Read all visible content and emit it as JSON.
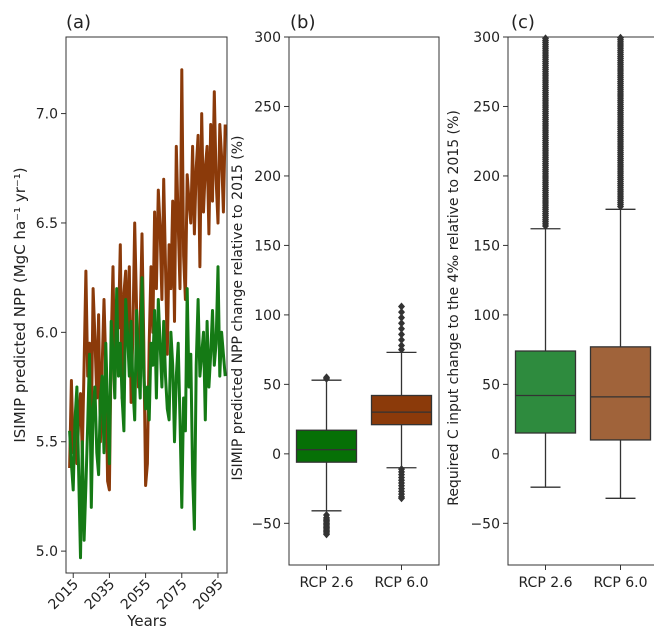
{
  "chart_data": [
    {
      "type": "line",
      "panel_label": "(a)",
      "title": "",
      "xlabel": "Years",
      "ylabel": "ISIMIP predicted NPP (MgC ha⁻¹ yr⁻¹)",
      "xlim": [
        2011,
        2100
      ],
      "ylim": [
        4.9,
        7.35
      ],
      "x_ticks": [
        2015,
        2035,
        2055,
        2075,
        2095
      ],
      "y_ticks": [
        5.0,
        5.5,
        6.0,
        6.5,
        7.0
      ],
      "y_tick_labels": [
        "5.0",
        "5.5",
        "6.0",
        "6.5",
        "7.0"
      ],
      "grid": false,
      "colors": {
        "rcp60": "#8B3A0A",
        "rcp26": "#157A15"
      },
      "x": [
        2013,
        2014,
        2015,
        2016,
        2017,
        2018,
        2019,
        2020,
        2021,
        2022,
        2023,
        2024,
        2025,
        2026,
        2027,
        2028,
        2029,
        2030,
        2031,
        2032,
        2033,
        2034,
        2035,
        2036,
        2037,
        2038,
        2039,
        2040,
        2041,
        2042,
        2043,
        2044,
        2045,
        2046,
        2047,
        2048,
        2049,
        2050,
        2051,
        2052,
        2053,
        2054,
        2055,
        2056,
        2057,
        2058,
        2059,
        2060,
        2061,
        2062,
        2063,
        2064,
        2065,
        2066,
        2067,
        2068,
        2069,
        2070,
        2071,
        2072,
        2073,
        2074,
        2075,
        2076,
        2077,
        2078,
        2079,
        2080,
        2081,
        2082,
        2083,
        2084,
        2085,
        2086,
        2087,
        2088,
        2089,
        2090,
        2091,
        2092,
        2093,
        2094,
        2095,
        2096,
        2097,
        2098,
        2099
      ],
      "series": [
        {
          "key": "rcp60",
          "values": [
            5.38,
            5.78,
            5.45,
            5.55,
            5.4,
            5.6,
            5.72,
            5.45,
            5.85,
            6.28,
            5.8,
            5.95,
            5.55,
            6.2,
            5.98,
            5.7,
            6.08,
            5.5,
            5.85,
            6.15,
            5.85,
            5.32,
            5.28,
            5.95,
            6.3,
            5.75,
            6.1,
            6.02,
            6.4,
            5.7,
            6.18,
            6.28,
            5.95,
            6.3,
            5.68,
            6.0,
            6.5,
            6.1,
            5.75,
            6.05,
            6.45,
            5.95,
            5.3,
            5.4,
            5.95,
            6.3,
            6.0,
            6.55,
            6.2,
            6.65,
            6.48,
            6.15,
            6.7,
            6.3,
            5.9,
            6.4,
            6.2,
            6.6,
            6.05,
            6.85,
            6.5,
            6.2,
            7.2,
            6.35,
            6.15,
            6.72,
            6.6,
            6.5,
            6.85,
            6.45,
            6.75,
            6.9,
            6.3,
            7.0,
            6.55,
            6.75,
            6.85,
            6.45,
            6.95,
            6.6,
            7.1,
            6.7,
            6.5,
            6.95,
            6.8,
            6.55,
            6.95
          ]
        },
        {
          "key": "rcp26",
          "values": [
            5.55,
            5.4,
            5.28,
            5.6,
            5.75,
            5.35,
            4.97,
            5.5,
            5.05,
            5.3,
            5.58,
            5.9,
            5.2,
            5.65,
            5.75,
            5.45,
            5.35,
            5.7,
            5.8,
            5.45,
            5.95,
            5.65,
            5.4,
            6.05,
            5.9,
            5.7,
            6.2,
            5.8,
            5.95,
            5.7,
            5.55,
            6.15,
            6.0,
            5.8,
            6.05,
            5.75,
            5.6,
            6.1,
            5.85,
            5.7,
            6.25,
            5.8,
            5.65,
            5.75,
            5.6,
            5.95,
            5.85,
            6.1,
            5.7,
            6.15,
            5.95,
            5.75,
            6.05,
            5.8,
            5.65,
            5.6,
            6.0,
            5.85,
            5.5,
            5.8,
            5.95,
            5.6,
            5.2,
            5.7,
            5.55,
            6.2,
            5.75,
            5.9,
            5.35,
            5.1,
            5.85,
            6.15,
            5.8,
            5.9,
            6.0,
            5.6,
            6.05,
            5.75,
            5.9,
            6.1,
            5.85,
            5.95,
            6.3,
            5.8,
            6.0,
            5.9,
            5.8
          ]
        }
      ]
    },
    {
      "type": "box",
      "panel_label": "(b)",
      "title": "",
      "xlabel": "",
      "ylabel": "ISIMIP predicted NPP change relative to 2015 (%)",
      "ylim": [
        -80,
        300
      ],
      "y_ticks": [
        -50,
        0,
        50,
        100,
        150,
        200,
        250,
        300
      ],
      "y_tick_labels": [
        "−50",
        "0",
        "50",
        "100",
        "150",
        "200",
        "250",
        "300"
      ],
      "categories": [
        "RCP 2.6",
        "RCP 6.0"
      ],
      "boxes": [
        {
          "color": "#067006",
          "whisker_low": -41,
          "q1": -6,
          "median": 3,
          "q3": 17,
          "whisker_high": 53,
          "fliers": [
            -44,
            -46,
            -47,
            -48,
            -49,
            -50,
            -51,
            -52,
            -53,
            -54,
            -55,
            -56,
            -57,
            -58,
            54,
            55
          ]
        },
        {
          "color": "#8B3A0A",
          "whisker_low": -10,
          "q1": 21,
          "median": 30,
          "q3": 42,
          "whisker_high": 73,
          "fliers": [
            -11,
            -13,
            -15,
            -17,
            -19,
            -21,
            -23,
            -25,
            -27,
            -29,
            -31,
            -32,
            75,
            78,
            82,
            86,
            90,
            94,
            98,
            102,
            106
          ]
        }
      ]
    },
    {
      "type": "box",
      "panel_label": "(c)",
      "title": "",
      "xlabel": "",
      "ylabel": "Required C input change to the 4‰ relative to 2015 (%)",
      "ylim": [
        -80,
        300
      ],
      "y_ticks": [
        -50,
        0,
        50,
        100,
        150,
        200,
        250,
        300
      ],
      "y_tick_labels": [
        "−50",
        "0",
        "50",
        "100",
        "150",
        "200",
        "250",
        "300"
      ],
      "categories": [
        "RCP 2.6",
        "RCP 6.0"
      ],
      "boxes": [
        {
          "color": "#2E8B3E",
          "whisker_low": -24,
          "q1": 15,
          "median": 42,
          "q3": 74,
          "whisker_high": 162,
          "flier_range": [
            164,
            300
          ]
        },
        {
          "color": "#A0633A",
          "whisker_low": -32,
          "q1": 10,
          "median": 41,
          "q3": 77,
          "whisker_high": 176,
          "flier_range": [
            178,
            300
          ]
        }
      ]
    }
  ]
}
